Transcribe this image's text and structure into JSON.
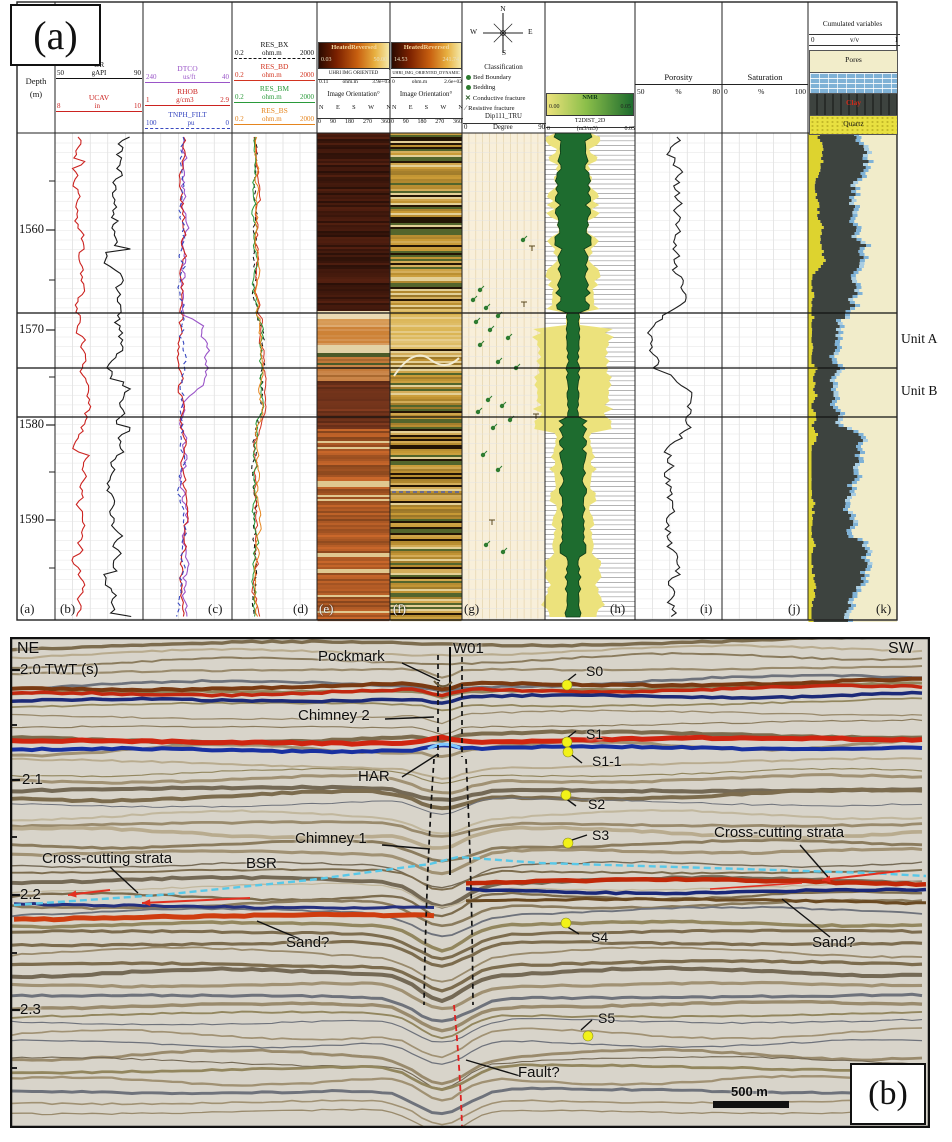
{
  "panel_a": {
    "label": "(a)",
    "depth_track": {
      "title": "Depth",
      "units": "(m)",
      "ticks": [
        "1560",
        "1570",
        "1580",
        "1590"
      ]
    },
    "gr_track": {
      "curves": [
        {
          "name": "GR",
          "min": "50",
          "unit": "gAPI",
          "max": "90"
        },
        {
          "name": "UCAV",
          "min": "8",
          "unit": "in",
          "max": "10"
        }
      ]
    },
    "son_track": {
      "curves": [
        {
          "name": "DTCO",
          "min": "240",
          "unit": "us/ft",
          "max": "40"
        },
        {
          "name": "RHOB",
          "min": "1",
          "unit": "g/cm3",
          "max": "2.9"
        },
        {
          "name": "TNPH_FILT",
          "min": "100",
          "unit": "pu",
          "max": "0"
        }
      ]
    },
    "res_track": {
      "curves": [
        {
          "name": "RES_BX",
          "min": "0.2",
          "unit": "ohm.m",
          "max": "2000"
        },
        {
          "name": "RES_BD",
          "min": "0.2",
          "unit": "ohm.m",
          "max": "2000"
        },
        {
          "name": "RES_BM",
          "min": "0.2",
          "unit": "ohm.m",
          "max": "2000"
        },
        {
          "name": "RES_BS",
          "min": "0.2",
          "unit": "ohm.m",
          "max": "2000"
        }
      ]
    },
    "image_static": {
      "cbar_title": "HeatedReversed",
      "cbar_min": "0.03",
      "cbar_max": "50.00",
      "name": "UHRI IMG ORIENTED",
      "min": "0.11",
      "unit": "ohm.m",
      "max": "3.9e+03",
      "orient_title": "Image Orientation°",
      "dirs": [
        "N",
        "E",
        "S",
        "W",
        "N"
      ],
      "degs": [
        "0",
        "90",
        "180",
        "270",
        "360"
      ]
    },
    "image_dynamic": {
      "cbar_title": "HeatedReversed",
      "cbar_min": "14.53",
      "cbar_max": "241.74",
      "name": "UHRI_IMG_ORIENTED_DYNAMIC",
      "min": "0",
      "unit": "ohm.m",
      "max": "2.6e+02",
      "orient_title": "Image Orientation°",
      "dirs": [
        "N",
        "E",
        "S",
        "W",
        "N"
      ],
      "degs": [
        "0",
        "90",
        "180",
        "270",
        "360"
      ]
    },
    "class_track": {
      "compass": {
        "n": "N",
        "e": "E",
        "s": "S",
        "w": "W"
      },
      "title": "Classification",
      "items": [
        {
          "label": "Bed Boundary"
        },
        {
          "label": "Bedding"
        },
        {
          "label": "Conductive fracture"
        },
        {
          "label": "Resistive fracture"
        }
      ],
      "dip_name": "Dip111_TRU",
      "min": "0",
      "unit": "Degree",
      "max": "90"
    },
    "nmr_track": {
      "cbar_title": "NMR",
      "cbar_min": "0.00",
      "cbar_max": "0.05",
      "name": "T2DIST_2D",
      "min": "0",
      "unit": "(m3/m3)",
      "max": "0.05"
    },
    "por_track": {
      "title": "Porosity",
      "min": "50",
      "unit": "%",
      "max": "80"
    },
    "sat_track": {
      "title": "Saturation",
      "min": "0",
      "unit": "%",
      "max": "100"
    },
    "lith_track": {
      "title": "Cumulated variables",
      "min": "0",
      "unit": "v/v",
      "max": "1",
      "bands": [
        {
          "label": "Pores"
        },
        {
          "label": ""
        },
        {
          "label": "Clay"
        },
        {
          "label": "Quartz"
        }
      ]
    },
    "unit_labels": [
      "Unit A",
      "Unit B"
    ],
    "bottom_labels": [
      "(a)",
      "(b)",
      "(c)",
      "(d)",
      "(e)",
      "(f)",
      "(g)",
      "(h)",
      "(i)",
      "(j)",
      "(k)"
    ]
  },
  "panel_b": {
    "label": "(b)",
    "corner_ne": "NE",
    "corner_sw": "SW",
    "well": "W01",
    "twt_label": "2.0 TWT (s)",
    "twt_ticks": [
      "2.1",
      "2.2",
      "2.3"
    ],
    "ann_pockmark": "Pockmark",
    "ann_chimney2": "Chimney 2",
    "ann_har": "HAR",
    "ann_chimney1": "Chimney 1",
    "ann_bsr": "BSR",
    "ann_ccs_left": "Cross-cutting strata",
    "ann_ccs_right": "Cross-cutting strata",
    "ann_sand_left": "Sand?",
    "ann_sand_right": "Sand?",
    "ann_fault": "Fault?",
    "markers": [
      "S0",
      "S1",
      "S1-1",
      "S2",
      "S3",
      "S4",
      "S5"
    ],
    "scale_bar": "500 m"
  }
}
